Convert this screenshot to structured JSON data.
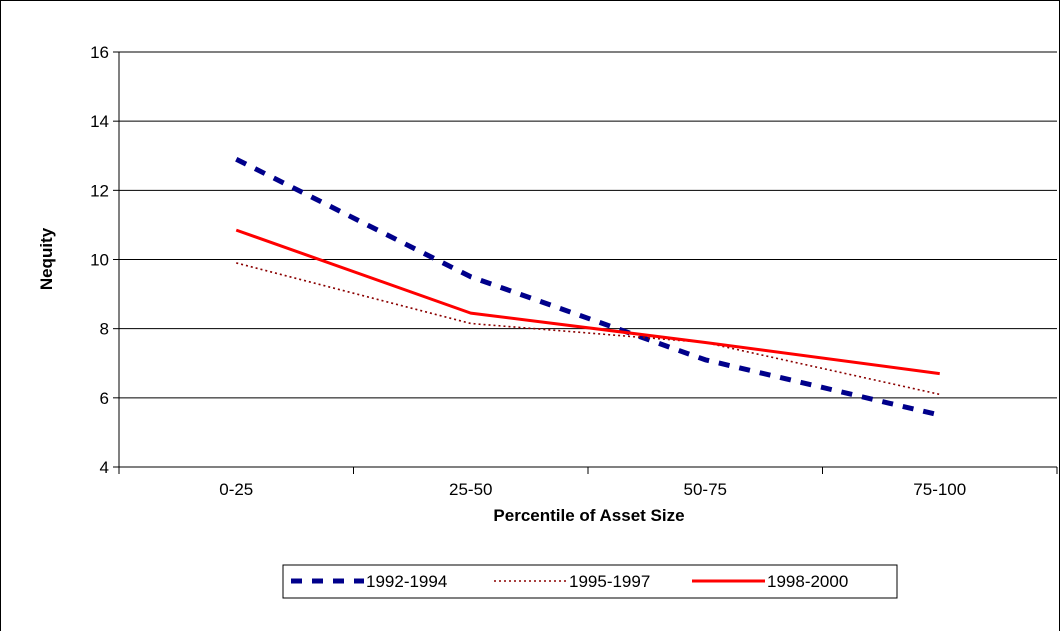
{
  "chart_data": {
    "type": "line",
    "title": "",
    "xlabel": "Percentile of Asset Size",
    "ylabel": "Nequity",
    "categories": [
      "0-25",
      "25-50",
      "50-75",
      "75-100"
    ],
    "ylim": [
      4,
      16
    ],
    "yticks": [
      4,
      6,
      8,
      10,
      12,
      14,
      16
    ],
    "grid": true,
    "legend": "bottom",
    "series": [
      {
        "name": "1992-1994",
        "values": [
          12.9,
          9.5,
          7.1,
          5.5
        ],
        "color": "#00008b",
        "style": "dashed"
      },
      {
        "name": "1995-1997",
        "values": [
          9.9,
          8.15,
          7.6,
          6.1
        ],
        "color": "#8b0000",
        "style": "dotted"
      },
      {
        "name": "1998-2000",
        "values": [
          10.85,
          8.45,
          7.6,
          6.7
        ],
        "color": "#ff0000",
        "style": "solid"
      }
    ]
  }
}
